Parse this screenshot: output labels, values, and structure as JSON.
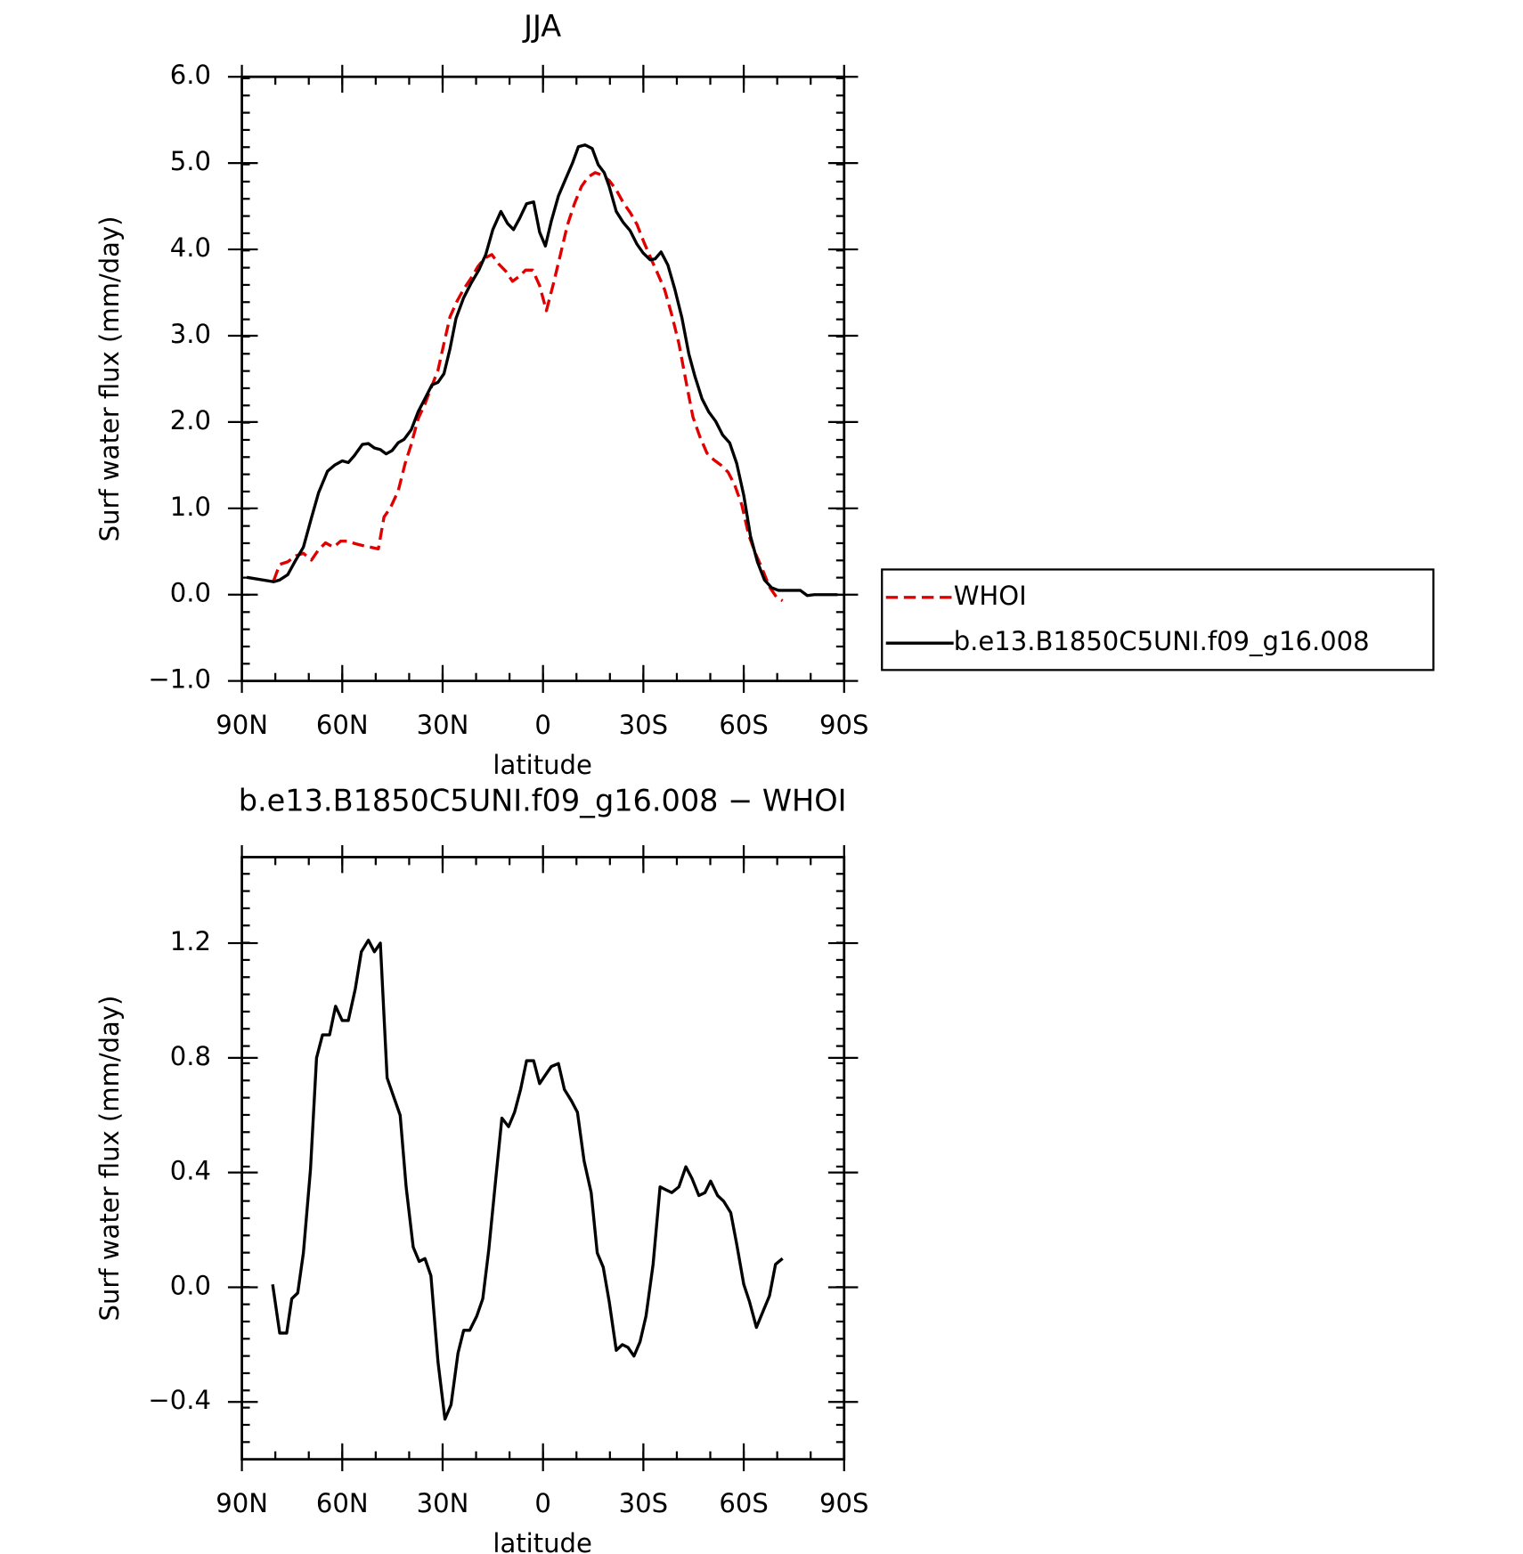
{
  "chart_data": [
    {
      "type": "line",
      "title": "JJA",
      "xlabel": "latitude",
      "ylabel": "Surf water flux (mm/day)",
      "xlim": [
        90,
        -90
      ],
      "xticks": [
        {
          "value": 90,
          "label": "90N"
        },
        {
          "value": 60,
          "label": "60N"
        },
        {
          "value": 30,
          "label": "30N"
        },
        0,
        {
          "value": -30,
          "label": "30S"
        },
        {
          "value": -60,
          "label": "60S"
        },
        {
          "value": -90,
          "label": "90S"
        }
      ],
      "ylim": [
        -1,
        6
      ],
      "yticks": [
        {
          "value": -1,
          "label": "−1.0"
        },
        {
          "value": 0,
          "label": "0.0"
        },
        {
          "value": 1,
          "label": "1.0"
        },
        {
          "value": 2,
          "label": "2.0"
        },
        {
          "value": 3,
          "label": "3.0"
        },
        {
          "value": 4,
          "label": "4.0"
        },
        {
          "value": 5,
          "label": "5.0"
        },
        {
          "value": 6,
          "label": "6.0"
        }
      ],
      "legend": "right",
      "series": [
        {
          "name": "WHOI",
          "color": "#e00000",
          "dashed": true,
          "x": [
            80.5,
            78.7,
            76.3,
            73.9,
            71.6,
            69.2,
            67.1,
            65,
            62.6,
            60.5,
            58.5,
            56.1,
            54,
            51.6,
            49.2,
            47.5,
            45.7,
            43.3,
            41.2,
            39.4,
            37.3,
            35.3,
            33.5,
            31.4,
            29.6,
            27.8,
            25.7,
            23.7,
            21.6,
            19.5,
            17.4,
            15.3,
            13.2,
            11.2,
            9.1,
            7,
            5.2,
            3.1,
            1,
            -1,
            -3.1,
            -5.2,
            -7.3,
            -9.4,
            -11.5,
            -13.5,
            -15.6,
            -17.7,
            -19.8,
            -21.9,
            -24,
            -26,
            -28.1,
            -30.2,
            -32.3,
            -34.4,
            -36.4,
            -38.5,
            -40.6,
            -42.7,
            -44.8,
            -46.9,
            -49,
            -51.1,
            -53.2,
            -55.3,
            -57.3,
            -59.4,
            -61.5,
            -63.5,
            -65.6,
            -67.7,
            -69.8,
            -71.6
          ],
          "values": [
            0.16,
            0.35,
            0.38,
            0.45,
            0.48,
            0.4,
            0.52,
            0.6,
            0.55,
            0.62,
            0.62,
            0.59,
            0.57,
            0.55,
            0.53,
            0.9,
            1.0,
            1.2,
            1.52,
            1.74,
            2.04,
            2.21,
            2.39,
            2.6,
            2.91,
            3.22,
            3.4,
            3.54,
            3.66,
            3.8,
            3.9,
            3.94,
            3.83,
            3.75,
            3.63,
            3.69,
            3.76,
            3.76,
            3.58,
            3.29,
            3.6,
            3.94,
            4.28,
            4.53,
            4.73,
            4.84,
            4.89,
            4.86,
            4.8,
            4.69,
            4.54,
            4.43,
            4.29,
            4.08,
            3.89,
            3.71,
            3.53,
            3.24,
            2.91,
            2.48,
            2.06,
            1.83,
            1.64,
            1.56,
            1.5,
            1.42,
            1.27,
            1.04,
            0.69,
            0.48,
            0.29,
            0.09,
            -0.03,
            -0.07
          ]
        },
        {
          "name": "b.e13.B1850C5UNI.f09_g16.008",
          "color": "#000000",
          "dashed": false,
          "x": [
            88.5,
            80.5,
            78.7,
            76.3,
            73.9,
            71.6,
            69.2,
            67.1,
            64.4,
            62.3,
            60,
            58.2,
            56.4,
            54,
            52.2,
            50.4,
            48.6,
            46.9,
            45.1,
            43.3,
            41.5,
            39.4,
            37.3,
            35.3,
            33.2,
            31.4,
            29.6,
            27.8,
            26,
            23.7,
            21.6,
            19.2,
            17.1,
            15,
            12.6,
            10.6,
            8.8,
            7,
            4.9,
            2.8,
            1,
            -0.7,
            -2.5,
            -4.6,
            -6.7,
            -8.8,
            -10.6,
            -12.6,
            -14.7,
            -16.5,
            -18.3,
            -19.8,
            -21.9,
            -24,
            -26,
            -28.1,
            -29.9,
            -32,
            -33.5,
            -35.3,
            -37.3,
            -39.4,
            -41.5,
            -43.6,
            -45.4,
            -47.5,
            -49.5,
            -51.6,
            -53.7,
            -55.8,
            -57.9,
            -60,
            -62,
            -64.1,
            -66.2,
            -68.3,
            -70.4,
            -72.7,
            -74.8,
            -76.9,
            -79,
            -81.1,
            -83.5,
            -88
          ],
          "values": [
            0.2,
            0.15,
            0.17,
            0.23,
            0.4,
            0.55,
            0.89,
            1.18,
            1.43,
            1.5,
            1.55,
            1.53,
            1.61,
            1.74,
            1.75,
            1.7,
            1.68,
            1.63,
            1.67,
            1.76,
            1.8,
            1.91,
            2.12,
            2.27,
            2.43,
            2.46,
            2.56,
            2.85,
            3.2,
            3.44,
            3.6,
            3.76,
            3.94,
            4.23,
            4.44,
            4.3,
            4.23,
            4.36,
            4.53,
            4.55,
            4.2,
            4.04,
            4.33,
            4.62,
            4.81,
            5.0,
            5.19,
            5.21,
            5.17,
            4.98,
            4.89,
            4.73,
            4.44,
            4.31,
            4.22,
            4.06,
            3.96,
            3.88,
            3.89,
            3.97,
            3.82,
            3.54,
            3.21,
            2.79,
            2.53,
            2.27,
            2.12,
            2.01,
            1.85,
            1.76,
            1.52,
            1.15,
            0.68,
            0.38,
            0.17,
            0.08,
            0.05,
            0.05,
            0.05,
            0.05,
            -0.01,
            0,
            0,
            0
          ]
        }
      ]
    },
    {
      "type": "line",
      "title": "b.e13.B1850C5UNI.f09_g16.008 − WHOI",
      "xlabel": "latitude",
      "ylabel": "Surf water flux (mm/day)",
      "xlim": [
        90,
        -90
      ],
      "xticks": [
        {
          "value": 90,
          "label": "90N"
        },
        {
          "value": 60,
          "label": "60N"
        },
        {
          "value": 30,
          "label": "30N"
        },
        0,
        {
          "value": -30,
          "label": "30S"
        },
        {
          "value": -60,
          "label": "60S"
        },
        {
          "value": -90,
          "label": "90S"
        }
      ],
      "ylim": [
        -0.6,
        1.5
      ],
      "yticks": [
        {
          "value": -0.4,
          "label": "−0.4"
        },
        {
          "value": 0,
          "label": "0.0"
        },
        0.4,
        0.8,
        1.2
      ],
      "series": [
        {
          "color": "#000000",
          "dashed": false,
          "x": [
            80.8,
            78.7,
            76.6,
            75.1,
            73.3,
            71.6,
            69.5,
            67.7,
            65.9,
            63.8,
            62,
            60,
            58.2,
            56.1,
            54.3,
            52.2,
            50.4,
            48.6,
            46.6,
            44.8,
            42.7,
            40.9,
            38.8,
            37,
            35.3,
            33.5,
            31.4,
            29.3,
            27.5,
            25.4,
            23.7,
            21.9,
            19.8,
            18,
            16.2,
            14.1,
            12.3,
            10.3,
            8.5,
            6.7,
            4.9,
            2.8,
            1,
            -0.7,
            -2.5,
            -4.6,
            -6.4,
            -8.5,
            -10.3,
            -12.3,
            -14.4,
            -16.2,
            -18,
            -19.8,
            -21.9,
            -23.7,
            -25.4,
            -27.2,
            -29,
            -30.8,
            -32.9,
            -35,
            -36.7,
            -38.5,
            -40.6,
            -42.7,
            -44.5,
            -46.6,
            -48.4,
            -50.1,
            -52.2,
            -54,
            -56.1,
            -57.9,
            -60,
            -61.7,
            -63.8,
            -65.9,
            -67.7,
            -69.5,
            -71.6
          ],
          "values": [
            0.01,
            -0.16,
            -0.16,
            -0.04,
            -0.02,
            0.12,
            0.41,
            0.8,
            0.88,
            0.88,
            0.98,
            0.93,
            0.93,
            1.04,
            1.17,
            1.21,
            1.17,
            1.2,
            0.73,
            0.67,
            0.6,
            0.35,
            0.14,
            0.09,
            0.1,
            0.04,
            -0.26,
            -0.46,
            -0.41,
            -0.23,
            -0.15,
            -0.15,
            -0.1,
            -0.04,
            0.13,
            0.38,
            0.59,
            0.56,
            0.61,
            0.69,
            0.79,
            0.79,
            0.71,
            0.74,
            0.77,
            0.78,
            0.69,
            0.65,
            0.61,
            0.44,
            0.33,
            0.12,
            0.07,
            -0.05,
            -0.22,
            -0.2,
            -0.21,
            -0.24,
            -0.19,
            -0.1,
            0.08,
            0.35,
            0.34,
            0.33,
            0.35,
            0.42,
            0.38,
            0.32,
            0.33,
            0.37,
            0.32,
            0.3,
            0.26,
            0.15,
            0.01,
            -0.05,
            -0.14,
            -0.08,
            -0.03,
            0.08,
            0.1
          ]
        }
      ]
    }
  ]
}
